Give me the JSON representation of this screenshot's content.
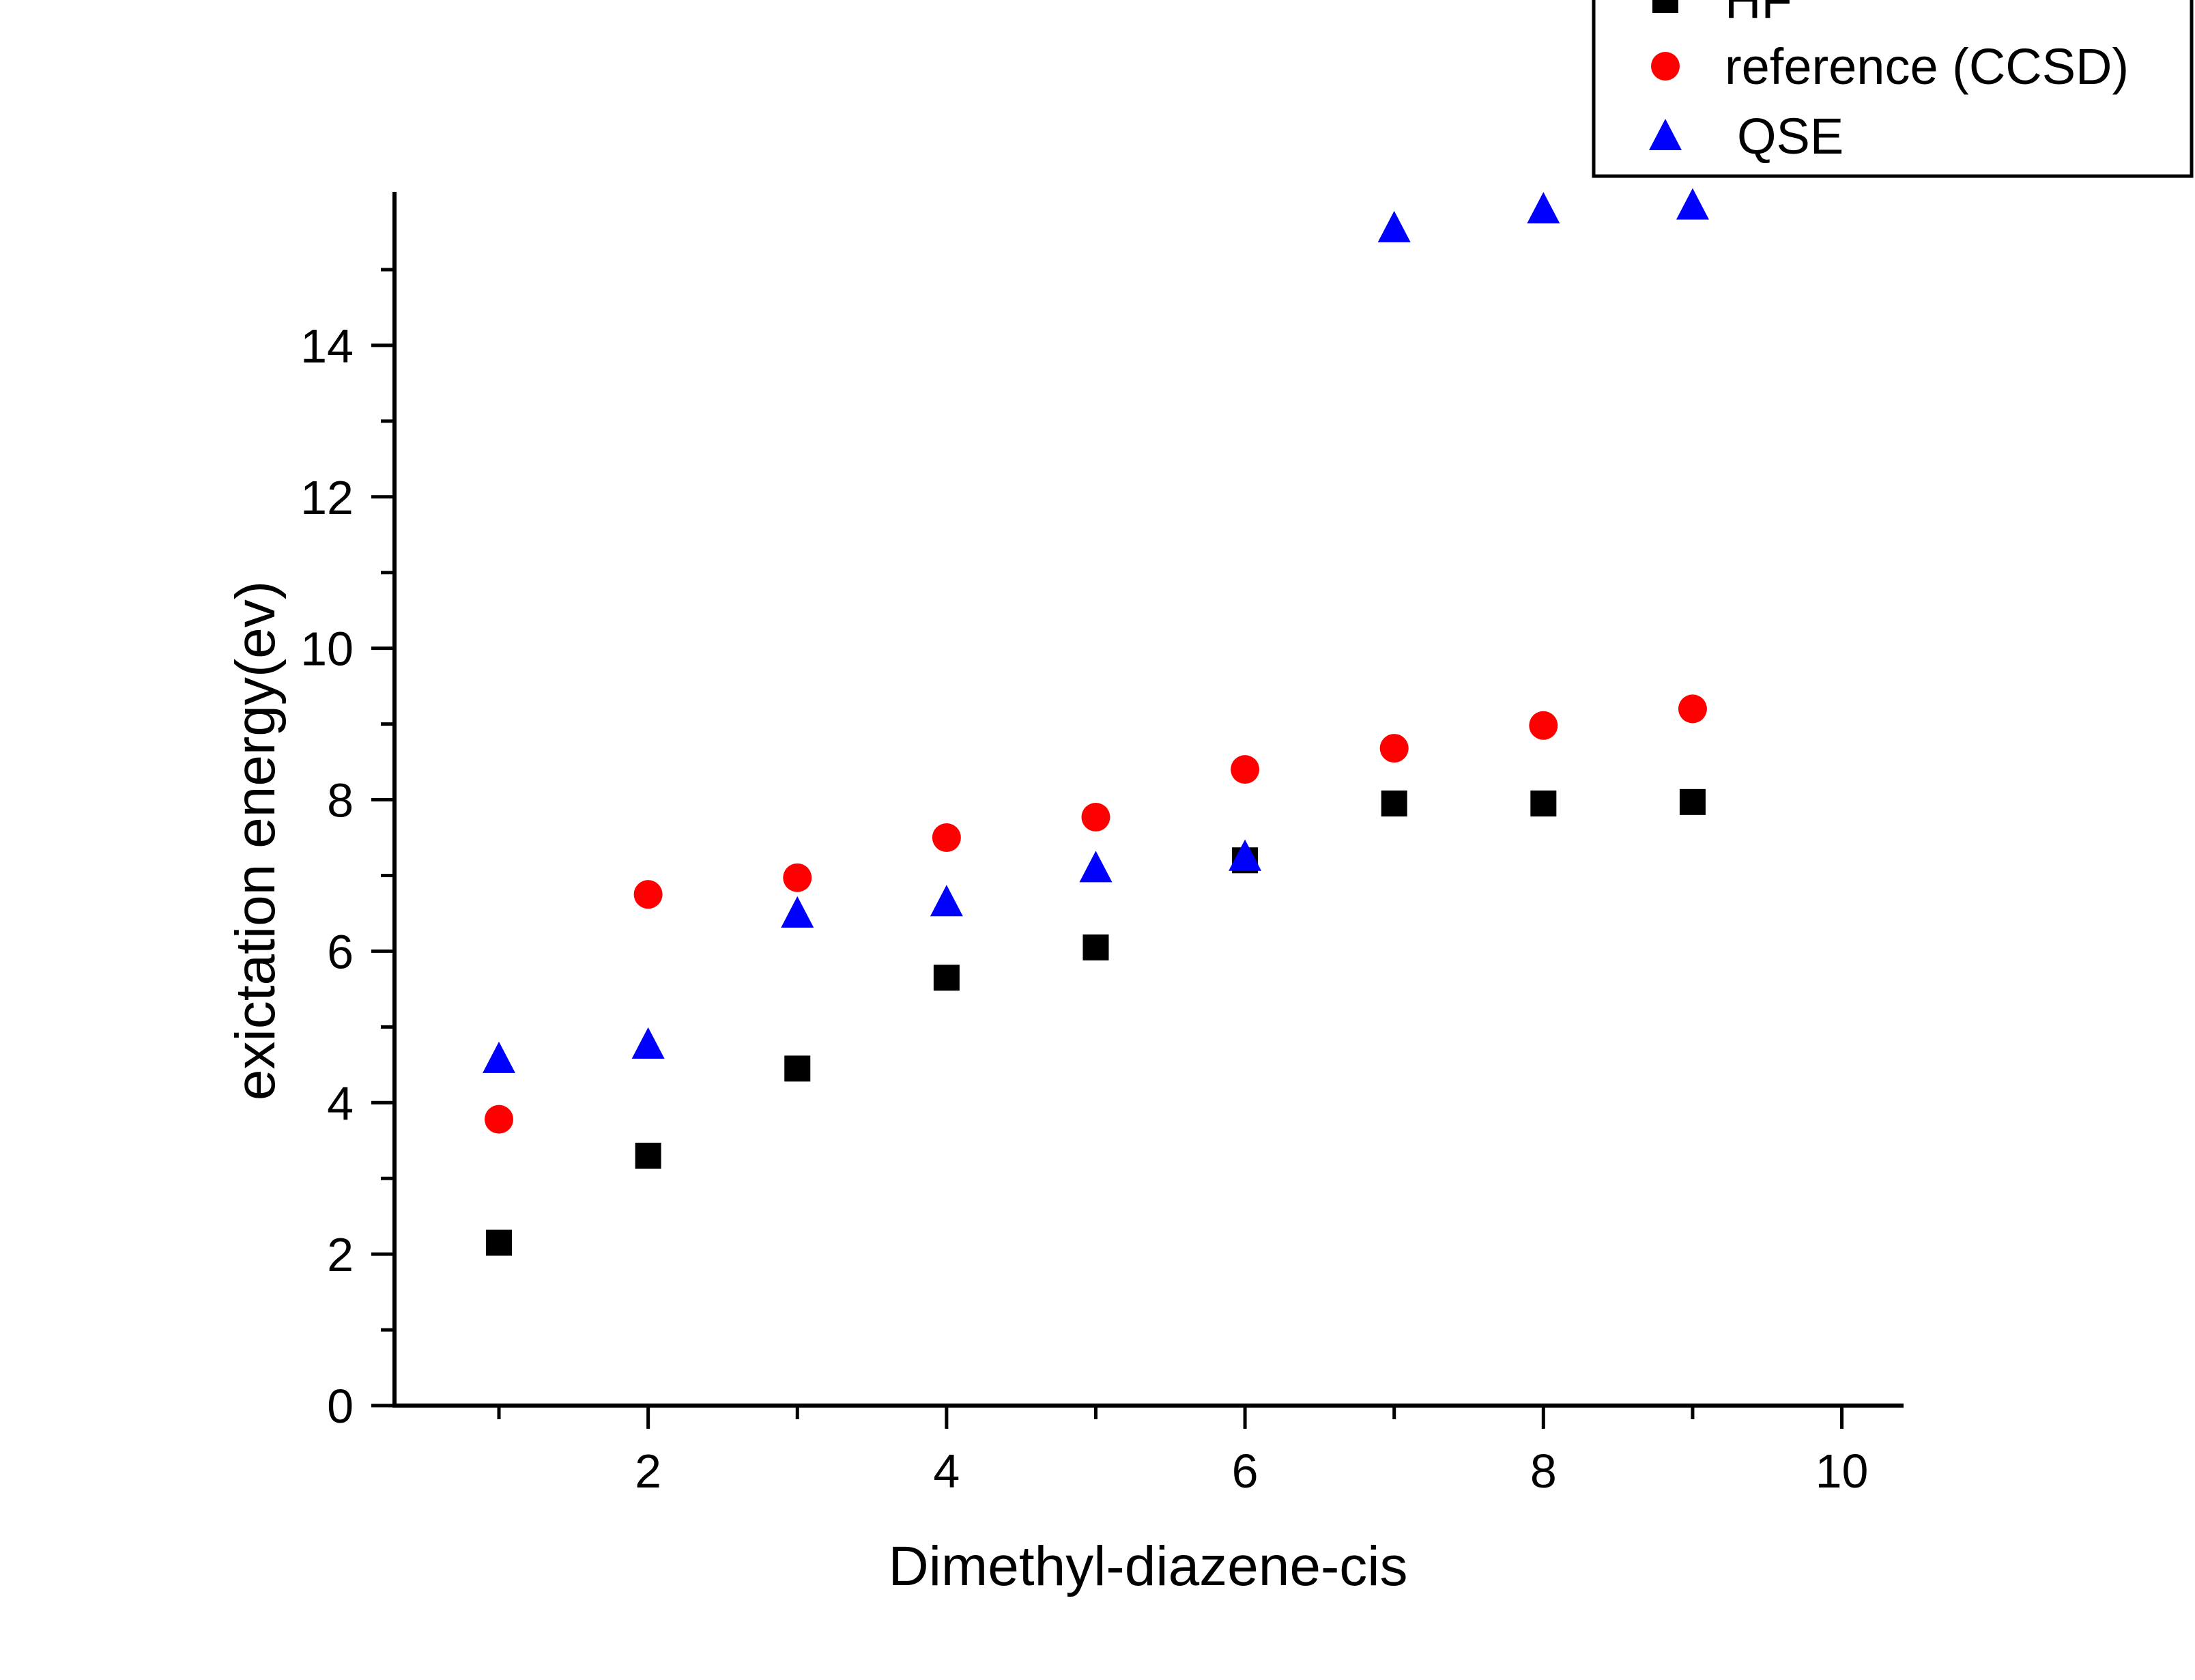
{
  "chart_data": {
    "type": "scatter",
    "title": "",
    "xlabel": "Dimethyl-diazene-cis",
    "ylabel": "exictation energy(ev)",
    "xlim": [
      0.3,
      10.4
    ],
    "ylim": [
      0,
      16
    ],
    "x_ticks": [
      2,
      4,
      6,
      8,
      10
    ],
    "y_ticks": [
      0,
      2,
      4,
      6,
      8,
      10,
      12,
      14
    ],
    "grid": false,
    "legend_position": "top-right",
    "series": [
      {
        "name": "HF",
        "marker": "square",
        "color": "#000000",
        "x": [
          1,
          2,
          3,
          4,
          5,
          6,
          7,
          8,
          9
        ],
        "y": [
          2.15,
          3.3,
          4.45,
          5.65,
          6.05,
          7.2,
          7.95,
          7.95,
          7.97
        ]
      },
      {
        "name": "reference (CCSD)",
        "marker": "circle",
        "color": "#ff0000",
        "x": [
          1,
          2,
          3,
          4,
          5,
          6,
          7,
          8,
          9
        ],
        "y": [
          3.78,
          6.75,
          6.97,
          7.5,
          7.77,
          8.4,
          8.68,
          8.98,
          9.2
        ]
      },
      {
        "name": "QSE",
        "marker": "triangle",
        "color": "#0000ff",
        "x": [
          1,
          2,
          3,
          4,
          5,
          6,
          7,
          8,
          9
        ],
        "y": [
          4.58,
          4.77,
          6.5,
          6.65,
          7.1,
          7.25,
          15.55,
          15.8,
          15.85
        ]
      }
    ]
  }
}
